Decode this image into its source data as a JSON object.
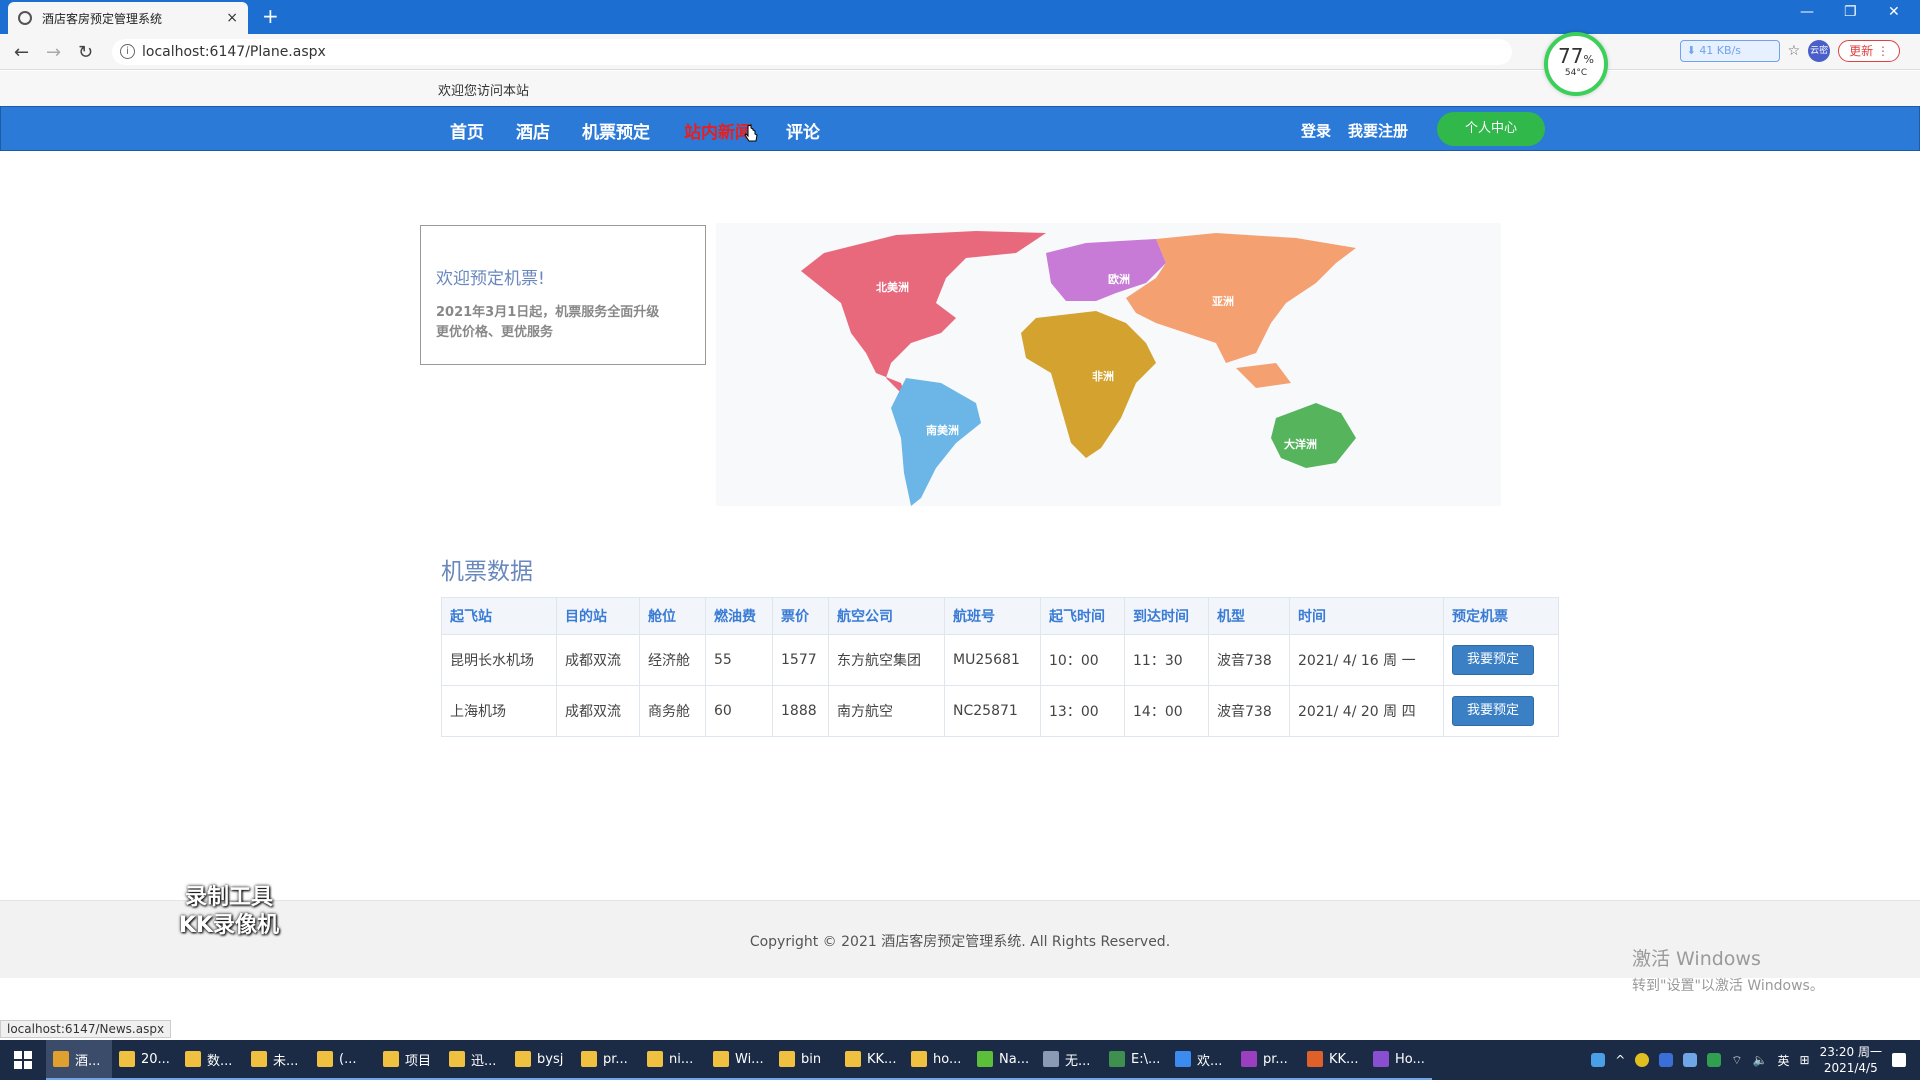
{
  "browser": {
    "tab_title": "酒店客房预定管理系统",
    "tab_close": "×",
    "new_tab": "+",
    "url": "localhost:6147/Plane.aspx",
    "status_url": "localhost:6147/News.aspx",
    "cloud_speed": "41 KB/s",
    "avatar_text": "云密",
    "update_label": "更新",
    "cpu_percent": "77",
    "cpu_percent_unit": "%",
    "cpu_temp": "54°C"
  },
  "site": {
    "welcome": "欢迎您访问本站",
    "nav": [
      {
        "label": "首页"
      },
      {
        "label": "酒店"
      },
      {
        "label": "机票预定"
      },
      {
        "label": "站内新闻"
      },
      {
        "label": "评论"
      }
    ],
    "login": "登录",
    "register": "我要注册",
    "user_center": "个人中心"
  },
  "promo": {
    "title": "欢迎预定机票!",
    "line1": "2021年3月1日起，机票服务全面升级",
    "line2": "更优价格、更优服务"
  },
  "map": {
    "labels": {
      "north_america": "北美洲",
      "europe": "欧洲",
      "asia": "亚洲",
      "africa": "非洲",
      "south_america": "南美洲",
      "oceania": "大洋洲"
    },
    "colors": {
      "north_america": "#e8687c",
      "europe": "#c77ad6",
      "asia": "#f4a070",
      "africa": "#d4a22e",
      "south_america": "#6bb6e6",
      "oceania": "#56b45d"
    }
  },
  "flights": {
    "title": "机票数据",
    "headers": [
      "起飞站",
      "目的站",
      "舱位",
      "燃油费",
      "票价",
      "航空公司",
      "航班号",
      "起飞时间",
      "到达时间",
      "机型",
      "时间",
      "预定机票"
    ],
    "book_label": "我要预定",
    "rows": [
      [
        "昆明长水机场",
        "成都双流",
        "经济舱",
        "55",
        "1577",
        "东方航空集团",
        "MU25681",
        "10：00",
        "11：30",
        "波音738",
        "2021/ 4/ 16 周 一"
      ],
      [
        "上海机场",
        "成都双流",
        "商务舱",
        "60",
        "1888",
        "南方航空",
        "NC25871",
        "13：00",
        "14：00",
        "波音738",
        "2021/ 4/ 20 周 四"
      ]
    ]
  },
  "footer": {
    "copyright": "Copyright © 2021 酒店客房预定管理系统. All Rights Reserved."
  },
  "overlay": {
    "watermark_line1": "录制工具",
    "watermark_line2": "KK录像机",
    "activate_line1": "激活 Windows",
    "activate_line2": "转到\"设置\"以激活 Windows。"
  },
  "taskbar": {
    "items": [
      {
        "label": "酒...",
        "color": "#e0a030",
        "active": true
      },
      {
        "label": "20...",
        "color": "#f0c040"
      },
      {
        "label": "数...",
        "color": "#f0c040"
      },
      {
        "label": "未...",
        "color": "#f0c040"
      },
      {
        "label": "(...",
        "color": "#f0c040"
      },
      {
        "label": "项目",
        "color": "#f0c040"
      },
      {
        "label": "迅...",
        "color": "#f0c040"
      },
      {
        "label": "bysj",
        "color": "#f0c040"
      },
      {
        "label": "pr...",
        "color": "#f0c040"
      },
      {
        "label": "ni...",
        "color": "#f0c040"
      },
      {
        "label": "Wi...",
        "color": "#f0c040"
      },
      {
        "label": "bin",
        "color": "#f0c040"
      },
      {
        "label": "KK...",
        "color": "#f0c040"
      },
      {
        "label": "ho...",
        "color": "#f0c040"
      },
      {
        "label": "Na...",
        "color": "#5cbf3a"
      },
      {
        "label": "无...",
        "color": "#8a9ab5"
      },
      {
        "label": "E:\\...",
        "color": "#3f8f4f"
      },
      {
        "label": "欢...",
        "color": "#3c8cf0"
      },
      {
        "label": "pr...",
        "color": "#9a3fc0"
      },
      {
        "label": "KK...",
        "color": "#e0602a"
      },
      {
        "label": "Ho...",
        "color": "#8a4fd0"
      }
    ],
    "ime": "英",
    "time": "23:20 周一",
    "date": "2021/4/5"
  }
}
